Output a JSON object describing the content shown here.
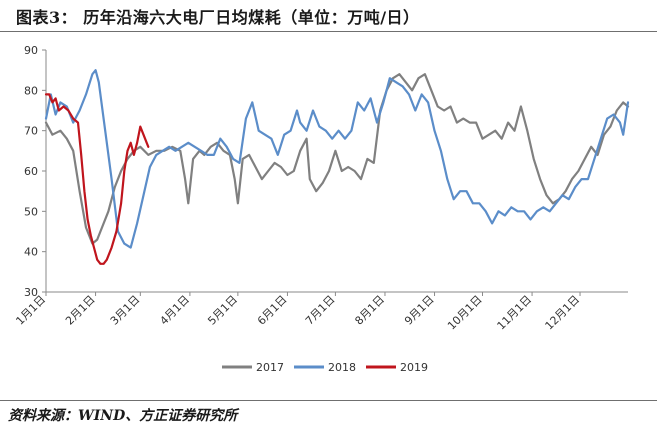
{
  "title": "图表3： 历年沿海六大电厂日均煤耗（单位：万吨/日）",
  "source": "资料来源：WIND、方正证券研究所",
  "chart_data": {
    "type": "line",
    "title": "历年沿海六大电厂日均煤耗（单位：万吨/日）",
    "xlabel": "",
    "ylabel": "",
    "xlim": [
      1,
      365
    ],
    "ylim": [
      30,
      90
    ],
    "yticks": [
      30,
      40,
      50,
      60,
      70,
      80,
      90
    ],
    "xticks": [
      {
        "label": "1月1日",
        "day": 1
      },
      {
        "label": "2月1日",
        "day": 32
      },
      {
        "label": "3月1日",
        "day": 60
      },
      {
        "label": "4月1日",
        "day": 91
      },
      {
        "label": "5月1日",
        "day": 121
      },
      {
        "label": "6月1日",
        "day": 152
      },
      {
        "label": "7月1日",
        "day": 182
      },
      {
        "label": "8月1日",
        "day": 213
      },
      {
        "label": "9月1日",
        "day": 244
      },
      {
        "label": "10月1日",
        "day": 274
      },
      {
        "label": "11月1日",
        "day": 305
      },
      {
        "label": "12月1日",
        "day": 335
      }
    ],
    "grid": false,
    "legend_position": "bottom",
    "series": [
      {
        "name": "2017",
        "color": "#808080",
        "points": [
          [
            1,
            72
          ],
          [
            5,
            69
          ],
          [
            10,
            70
          ],
          [
            14,
            68
          ],
          [
            18,
            65
          ],
          [
            22,
            55
          ],
          [
            26,
            46
          ],
          [
            30,
            42
          ],
          [
            33,
            43
          ],
          [
            36,
            46
          ],
          [
            40,
            50
          ],
          [
            44,
            56
          ],
          [
            48,
            60
          ],
          [
            52,
            63
          ],
          [
            56,
            65
          ],
          [
            60,
            66
          ],
          [
            65,
            64
          ],
          [
            70,
            65
          ],
          [
            75,
            65
          ],
          [
            80,
            66
          ],
          [
            85,
            65
          ],
          [
            88,
            58
          ],
          [
            90,
            52
          ],
          [
            93,
            63
          ],
          [
            97,
            65
          ],
          [
            100,
            64
          ],
          [
            104,
            66
          ],
          [
            108,
            67
          ],
          [
            112,
            65
          ],
          [
            116,
            64
          ],
          [
            119,
            58
          ],
          [
            121,
            52
          ],
          [
            124,
            63
          ],
          [
            128,
            64
          ],
          [
            132,
            61
          ],
          [
            136,
            58
          ],
          [
            140,
            60
          ],
          [
            144,
            62
          ],
          [
            148,
            61
          ],
          [
            152,
            59
          ],
          [
            156,
            60
          ],
          [
            160,
            65
          ],
          [
            164,
            68
          ],
          [
            166,
            58
          ],
          [
            170,
            55
          ],
          [
            174,
            57
          ],
          [
            178,
            60
          ],
          [
            182,
            65
          ],
          [
            186,
            60
          ],
          [
            190,
            61
          ],
          [
            194,
            60
          ],
          [
            198,
            58
          ],
          [
            202,
            63
          ],
          [
            206,
            62
          ],
          [
            210,
            75
          ],
          [
            214,
            80
          ],
          [
            218,
            83
          ],
          [
            222,
            84
          ],
          [
            226,
            82
          ],
          [
            230,
            80
          ],
          [
            234,
            83
          ],
          [
            238,
            84
          ],
          [
            242,
            80
          ],
          [
            246,
            76
          ],
          [
            250,
            75
          ],
          [
            254,
            76
          ],
          [
            258,
            72
          ],
          [
            262,
            73
          ],
          [
            266,
            72
          ],
          [
            270,
            72
          ],
          [
            274,
            68
          ],
          [
            278,
            69
          ],
          [
            282,
            70
          ],
          [
            286,
            68
          ],
          [
            290,
            72
          ],
          [
            294,
            70
          ],
          [
            298,
            76
          ],
          [
            302,
            70
          ],
          [
            306,
            63
          ],
          [
            310,
            58
          ],
          [
            314,
            54
          ],
          [
            318,
            52
          ],
          [
            322,
            53
          ],
          [
            326,
            55
          ],
          [
            330,
            58
          ],
          [
            334,
            60
          ],
          [
            338,
            63
          ],
          [
            342,
            66
          ],
          [
            346,
            64
          ],
          [
            350,
            69
          ],
          [
            354,
            71
          ],
          [
            358,
            75
          ],
          [
            362,
            77
          ],
          [
            365,
            76
          ]
        ]
      },
      {
        "name": "2018",
        "color": "#5b8dc9",
        "points": [
          [
            1,
            73
          ],
          [
            4,
            79
          ],
          [
            7,
            74
          ],
          [
            10,
            77
          ],
          [
            14,
            76
          ],
          [
            18,
            72
          ],
          [
            22,
            75
          ],
          [
            26,
            79
          ],
          [
            30,
            84
          ],
          [
            32,
            85
          ],
          [
            34,
            82
          ],
          [
            38,
            70
          ],
          [
            42,
            58
          ],
          [
            46,
            45
          ],
          [
            50,
            42
          ],
          [
            54,
            41
          ],
          [
            58,
            47
          ],
          [
            62,
            54
          ],
          [
            66,
            61
          ],
          [
            70,
            64
          ],
          [
            74,
            65
          ],
          [
            78,
            66
          ],
          [
            82,
            65
          ],
          [
            86,
            66
          ],
          [
            90,
            67
          ],
          [
            94,
            66
          ],
          [
            98,
            65
          ],
          [
            102,
            64
          ],
          [
            106,
            64
          ],
          [
            110,
            68
          ],
          [
            114,
            66
          ],
          [
            118,
            63
          ],
          [
            122,
            62
          ],
          [
            126,
            73
          ],
          [
            130,
            77
          ],
          [
            134,
            70
          ],
          [
            138,
            69
          ],
          [
            142,
            68
          ],
          [
            146,
            64
          ],
          [
            150,
            69
          ],
          [
            154,
            70
          ],
          [
            158,
            75
          ],
          [
            160,
            72
          ],
          [
            164,
            70
          ],
          [
            168,
            75
          ],
          [
            172,
            71
          ],
          [
            176,
            70
          ],
          [
            180,
            68
          ],
          [
            184,
            70
          ],
          [
            188,
            68
          ],
          [
            192,
            70
          ],
          [
            196,
            77
          ],
          [
            200,
            75
          ],
          [
            204,
            78
          ],
          [
            208,
            72
          ],
          [
            212,
            77
          ],
          [
            216,
            83
          ],
          [
            220,
            82
          ],
          [
            224,
            81
          ],
          [
            228,
            79
          ],
          [
            232,
            75
          ],
          [
            236,
            79
          ],
          [
            240,
            77
          ],
          [
            244,
            70
          ],
          [
            248,
            65
          ],
          [
            252,
            58
          ],
          [
            256,
            53
          ],
          [
            260,
            55
          ],
          [
            264,
            55
          ],
          [
            268,
            52
          ],
          [
            272,
            52
          ],
          [
            276,
            50
          ],
          [
            280,
            47
          ],
          [
            284,
            50
          ],
          [
            288,
            49
          ],
          [
            292,
            51
          ],
          [
            296,
            50
          ],
          [
            300,
            50
          ],
          [
            304,
            48
          ],
          [
            308,
            50
          ],
          [
            312,
            51
          ],
          [
            316,
            50
          ],
          [
            320,
            52
          ],
          [
            324,
            54
          ],
          [
            328,
            53
          ],
          [
            332,
            56
          ],
          [
            336,
            58
          ],
          [
            340,
            58
          ],
          [
            344,
            63
          ],
          [
            348,
            68
          ],
          [
            352,
            73
          ],
          [
            356,
            74
          ],
          [
            360,
            72
          ],
          [
            362,
            69
          ],
          [
            365,
            77
          ]
        ]
      },
      {
        "name": "2019",
        "color": "#c0151d",
        "points": [
          [
            1,
            79
          ],
          [
            3,
            79
          ],
          [
            5,
            77
          ],
          [
            7,
            78
          ],
          [
            9,
            75
          ],
          [
            12,
            76
          ],
          [
            15,
            75
          ],
          [
            18,
            73
          ],
          [
            21,
            72
          ],
          [
            23,
            64
          ],
          [
            25,
            55
          ],
          [
            27,
            48
          ],
          [
            29,
            44
          ],
          [
            31,
            41
          ],
          [
            33,
            38
          ],
          [
            35,
            37
          ],
          [
            37,
            37
          ],
          [
            39,
            38
          ],
          [
            42,
            41
          ],
          [
            45,
            45
          ],
          [
            48,
            52
          ],
          [
            50,
            60
          ],
          [
            52,
            65
          ],
          [
            54,
            67
          ],
          [
            56,
            64
          ],
          [
            58,
            67
          ],
          [
            60,
            71
          ],
          [
            62,
            69
          ],
          [
            64,
            67
          ],
          [
            65,
            66
          ]
        ]
      }
    ]
  }
}
